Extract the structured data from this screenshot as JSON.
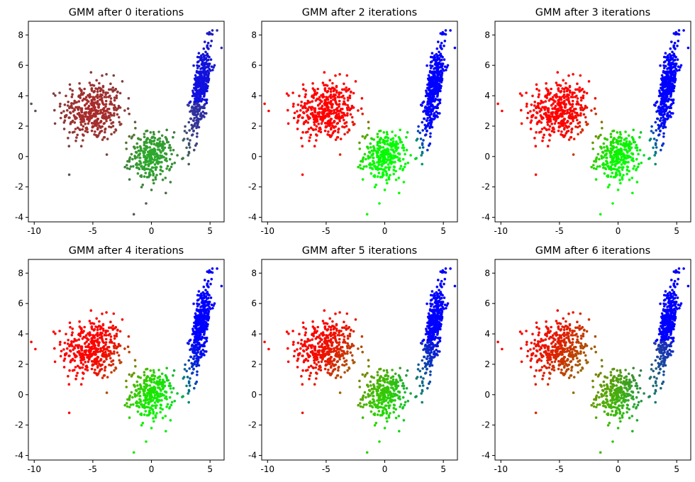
{
  "chart_data": [
    {
      "type": "scatter",
      "title": "GMM after 0 iterations",
      "iteration": 0,
      "xlim": [
        -10.5,
        6.2
      ],
      "ylim": [
        -4.3,
        8.9
      ],
      "xticks": [
        -10,
        -5,
        0,
        5
      ],
      "yticks": [
        -4,
        -2,
        0,
        2,
        4,
        6,
        8
      ],
      "clusters": [
        {
          "name": "red-blob",
          "center": [
            -5.0,
            3.0
          ],
          "spread": [
            1.3,
            1.0
          ],
          "n": 420
        },
        {
          "name": "green-blob",
          "center": [
            0.0,
            0.0
          ],
          "spread": [
            0.9,
            0.8
          ],
          "n": 300
        },
        {
          "name": "blue-band",
          "center": [
            4.2,
            4.5
          ],
          "spread": [
            0.35,
            1.6
          ],
          "n": 430
        }
      ],
      "outliers": [
        [
          -1.5,
          -3.8
        ],
        [
          -9.9,
          3.0
        ],
        [
          5.2,
          8.3
        ],
        [
          5.6,
          8.3
        ]
      ]
    },
    {
      "type": "scatter",
      "title": "GMM after 2 iterations",
      "iteration": 2,
      "xlim": [
        -10.5,
        6.2
      ],
      "ylim": [
        -4.3,
        8.9
      ],
      "xticks": [
        -10,
        -5,
        0,
        5
      ],
      "yticks": [
        -4,
        -2,
        0,
        2,
        4,
        6,
        8
      ],
      "clusters": [
        {
          "name": "red-blob",
          "center": [
            -5.0,
            3.0
          ],
          "spread": [
            1.3,
            1.0
          ],
          "n": 420
        },
        {
          "name": "green-blob",
          "center": [
            0.0,
            0.0
          ],
          "spread": [
            0.9,
            0.8
          ],
          "n": 300
        },
        {
          "name": "blue-band",
          "center": [
            4.2,
            4.5
          ],
          "spread": [
            0.35,
            1.6
          ],
          "n": 430
        }
      ],
      "outliers": [
        [
          -1.5,
          -3.8
        ],
        [
          -9.9,
          3.0
        ],
        [
          5.2,
          8.3
        ],
        [
          5.6,
          8.3
        ]
      ]
    },
    {
      "type": "scatter",
      "title": "GMM after 3 iterations",
      "iteration": 3,
      "xlim": [
        -10.5,
        6.2
      ],
      "ylim": [
        -4.3,
        8.9
      ],
      "xticks": [
        -10,
        -5,
        0,
        5
      ],
      "yticks": [
        -4,
        -2,
        0,
        2,
        4,
        6,
        8
      ],
      "clusters": [
        {
          "name": "red-blob",
          "center": [
            -5.0,
            3.0
          ],
          "spread": [
            1.3,
            1.0
          ],
          "n": 420
        },
        {
          "name": "green-blob",
          "center": [
            0.0,
            0.0
          ],
          "spread": [
            0.9,
            0.8
          ],
          "n": 300
        },
        {
          "name": "blue-band",
          "center": [
            4.2,
            4.5
          ],
          "spread": [
            0.35,
            1.6
          ],
          "n": 430
        }
      ],
      "outliers": [
        [
          -1.5,
          -3.8
        ],
        [
          -9.9,
          3.0
        ],
        [
          5.2,
          8.3
        ],
        [
          5.6,
          8.3
        ]
      ]
    },
    {
      "type": "scatter",
      "title": "GMM after 4 iterations",
      "iteration": 4,
      "xlim": [
        -10.5,
        6.2
      ],
      "ylim": [
        -4.3,
        8.9
      ],
      "xticks": [
        -10,
        -5,
        0,
        5
      ],
      "yticks": [
        -4,
        -2,
        0,
        2,
        4,
        6,
        8
      ],
      "clusters": [
        {
          "name": "red-blob",
          "center": [
            -5.0,
            3.0
          ],
          "spread": [
            1.3,
            1.0
          ],
          "n": 420
        },
        {
          "name": "green-blob",
          "center": [
            0.0,
            0.0
          ],
          "spread": [
            0.9,
            0.8
          ],
          "n": 300
        },
        {
          "name": "blue-band",
          "center": [
            4.2,
            4.5
          ],
          "spread": [
            0.35,
            1.6
          ],
          "n": 430
        }
      ],
      "outliers": [
        [
          -1.5,
          -3.8
        ],
        [
          -9.9,
          3.0
        ],
        [
          5.2,
          8.3
        ],
        [
          5.6,
          8.3
        ]
      ]
    },
    {
      "type": "scatter",
      "title": "GMM after 5 iterations",
      "iteration": 5,
      "xlim": [
        -10.5,
        6.2
      ],
      "ylim": [
        -4.3,
        8.9
      ],
      "xticks": [
        -10,
        -5,
        0,
        5
      ],
      "yticks": [
        -4,
        -2,
        0,
        2,
        4,
        6,
        8
      ],
      "clusters": [
        {
          "name": "red-blob",
          "center": [
            -5.0,
            3.0
          ],
          "spread": [
            1.3,
            1.0
          ],
          "n": 420
        },
        {
          "name": "green-blob",
          "center": [
            0.0,
            0.0
          ],
          "spread": [
            0.9,
            0.8
          ],
          "n": 300
        },
        {
          "name": "blue-band",
          "center": [
            4.2,
            4.5
          ],
          "spread": [
            0.35,
            1.6
          ],
          "n": 430
        }
      ],
      "outliers": [
        [
          -1.5,
          -3.8
        ],
        [
          -9.9,
          3.0
        ],
        [
          5.2,
          8.3
        ],
        [
          5.6,
          8.3
        ]
      ]
    },
    {
      "type": "scatter",
      "title": "GMM after 6 iterations",
      "iteration": 6,
      "xlim": [
        -10.5,
        6.2
      ],
      "ylim": [
        -4.3,
        8.9
      ],
      "xticks": [
        -10,
        -5,
        0,
        5
      ],
      "yticks": [
        -4,
        -2,
        0,
        2,
        4,
        6,
        8
      ],
      "clusters": [
        {
          "name": "red-blob",
          "center": [
            -5.0,
            3.0
          ],
          "spread": [
            1.3,
            1.0
          ],
          "n": 420
        },
        {
          "name": "green-blob",
          "center": [
            0.0,
            0.0
          ],
          "spread": [
            0.9,
            0.8
          ],
          "n": 300
        },
        {
          "name": "blue-band",
          "center": [
            4.2,
            4.5
          ],
          "spread": [
            0.35,
            1.6
          ],
          "n": 430
        }
      ],
      "outliers": [
        [
          -1.5,
          -3.8
        ],
        [
          -9.9,
          3.0
        ],
        [
          5.2,
          8.3
        ],
        [
          5.6,
          8.3
        ]
      ]
    }
  ],
  "colors": {
    "red": "#ff0000",
    "green": "#00ff00",
    "blue": "#0000ff",
    "background": "#ffffff",
    "axis": "#000000"
  }
}
